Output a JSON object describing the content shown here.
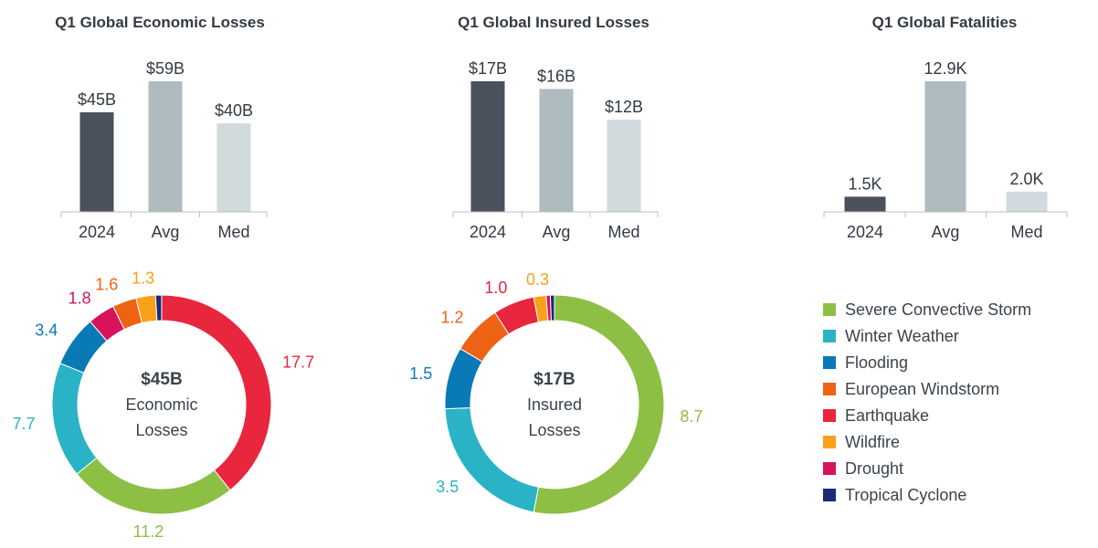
{
  "chart_data": [
    {
      "type": "bar",
      "title": "Q1 Global Economic Losses",
      "categories": [
        "2024",
        "Avg",
        "Med"
      ],
      "values": [
        45,
        59,
        40
      ],
      "data_labels": [
        "$45B",
        "$59B",
        "$40B"
      ],
      "colors": [
        "#4a515c",
        "#aebcbf",
        "#d1dbde"
      ],
      "ylim": [
        0,
        59
      ]
    },
    {
      "type": "bar",
      "title": "Q1 Global Insured Losses",
      "categories": [
        "2024",
        "Avg",
        "Med"
      ],
      "values": [
        17,
        16,
        12
      ],
      "data_labels": [
        "$17B",
        "$16B",
        "$12B"
      ],
      "colors": [
        "#4a515c",
        "#aebcbf",
        "#d1dbde"
      ],
      "ylim": [
        0,
        17
      ]
    },
    {
      "type": "bar",
      "title": "Q1 Global Fatalities",
      "categories": [
        "2024",
        "Avg",
        "Med"
      ],
      "values": [
        1.5,
        12.9,
        2.0
      ],
      "data_labels": [
        "1.5K",
        "12.9K",
        "2.0K"
      ],
      "colors": [
        "#4a515c",
        "#aebcbf",
        "#d1dbde"
      ],
      "ylim": [
        0,
        12.9
      ]
    },
    {
      "type": "pie",
      "center_value": "$45B",
      "center_label": [
        "Economic",
        "Losses"
      ],
      "slices": [
        {
          "name": "Earthquake",
          "value": 17.7,
          "label": "17.7"
        },
        {
          "name": "Severe Convective Storm",
          "value": 11.2,
          "label": "11.2"
        },
        {
          "name": "Winter Weather",
          "value": 7.7,
          "label": "7.7"
        },
        {
          "name": "Flooding",
          "value": 3.4,
          "label": "3.4"
        },
        {
          "name": "Drought",
          "value": 1.8,
          "label": "1.8"
        },
        {
          "name": "European Windstorm",
          "value": 1.6,
          "label": "1.6"
        },
        {
          "name": "Wildfire",
          "value": 1.3,
          "label": "1.3"
        },
        {
          "name": "Tropical Cyclone",
          "value": 0.4,
          "label": ""
        }
      ]
    },
    {
      "type": "pie",
      "center_value": "$17B",
      "center_label": [
        "Insured",
        "Losses"
      ],
      "slices": [
        {
          "name": "Severe Convective Storm",
          "value": 8.7,
          "label": "8.7"
        },
        {
          "name": "Winter Weather",
          "value": 3.5,
          "label": "3.5"
        },
        {
          "name": "Flooding",
          "value": 1.5,
          "label": "1.5"
        },
        {
          "name": "European Windstorm",
          "value": 1.2,
          "label": "1.2"
        },
        {
          "name": "Earthquake",
          "value": 1.0,
          "label": "1.0"
        },
        {
          "name": "Wildfire",
          "value": 0.3,
          "label": "0.3"
        },
        {
          "name": "Drought",
          "value": 0.1,
          "label": ""
        },
        {
          "name": "Tropical Cyclone",
          "value": 0.1,
          "label": ""
        }
      ]
    }
  ],
  "legend": {
    "placement": "bottom-right",
    "items": [
      {
        "name": "Severe Convective Storm",
        "color": "#8dbf45",
        "icon": "green-square"
      },
      {
        "name": "Winter Weather",
        "color": "#2ab3c6",
        "icon": "teal-square"
      },
      {
        "name": "Flooding",
        "color": "#0a7ab6",
        "icon": "blue-square"
      },
      {
        "name": "European Windstorm",
        "color": "#ee6213",
        "icon": "orange-square"
      },
      {
        "name": "Earthquake",
        "color": "#e8263d",
        "icon": "red-square"
      },
      {
        "name": "Wildfire",
        "color": "#f9a11b",
        "icon": "amber-square"
      },
      {
        "name": "Drought",
        "color": "#d8125b",
        "icon": "magenta-square"
      },
      {
        "name": "Tropical Cyclone",
        "color": "#1b2a78",
        "icon": "navy-square"
      }
    ]
  }
}
